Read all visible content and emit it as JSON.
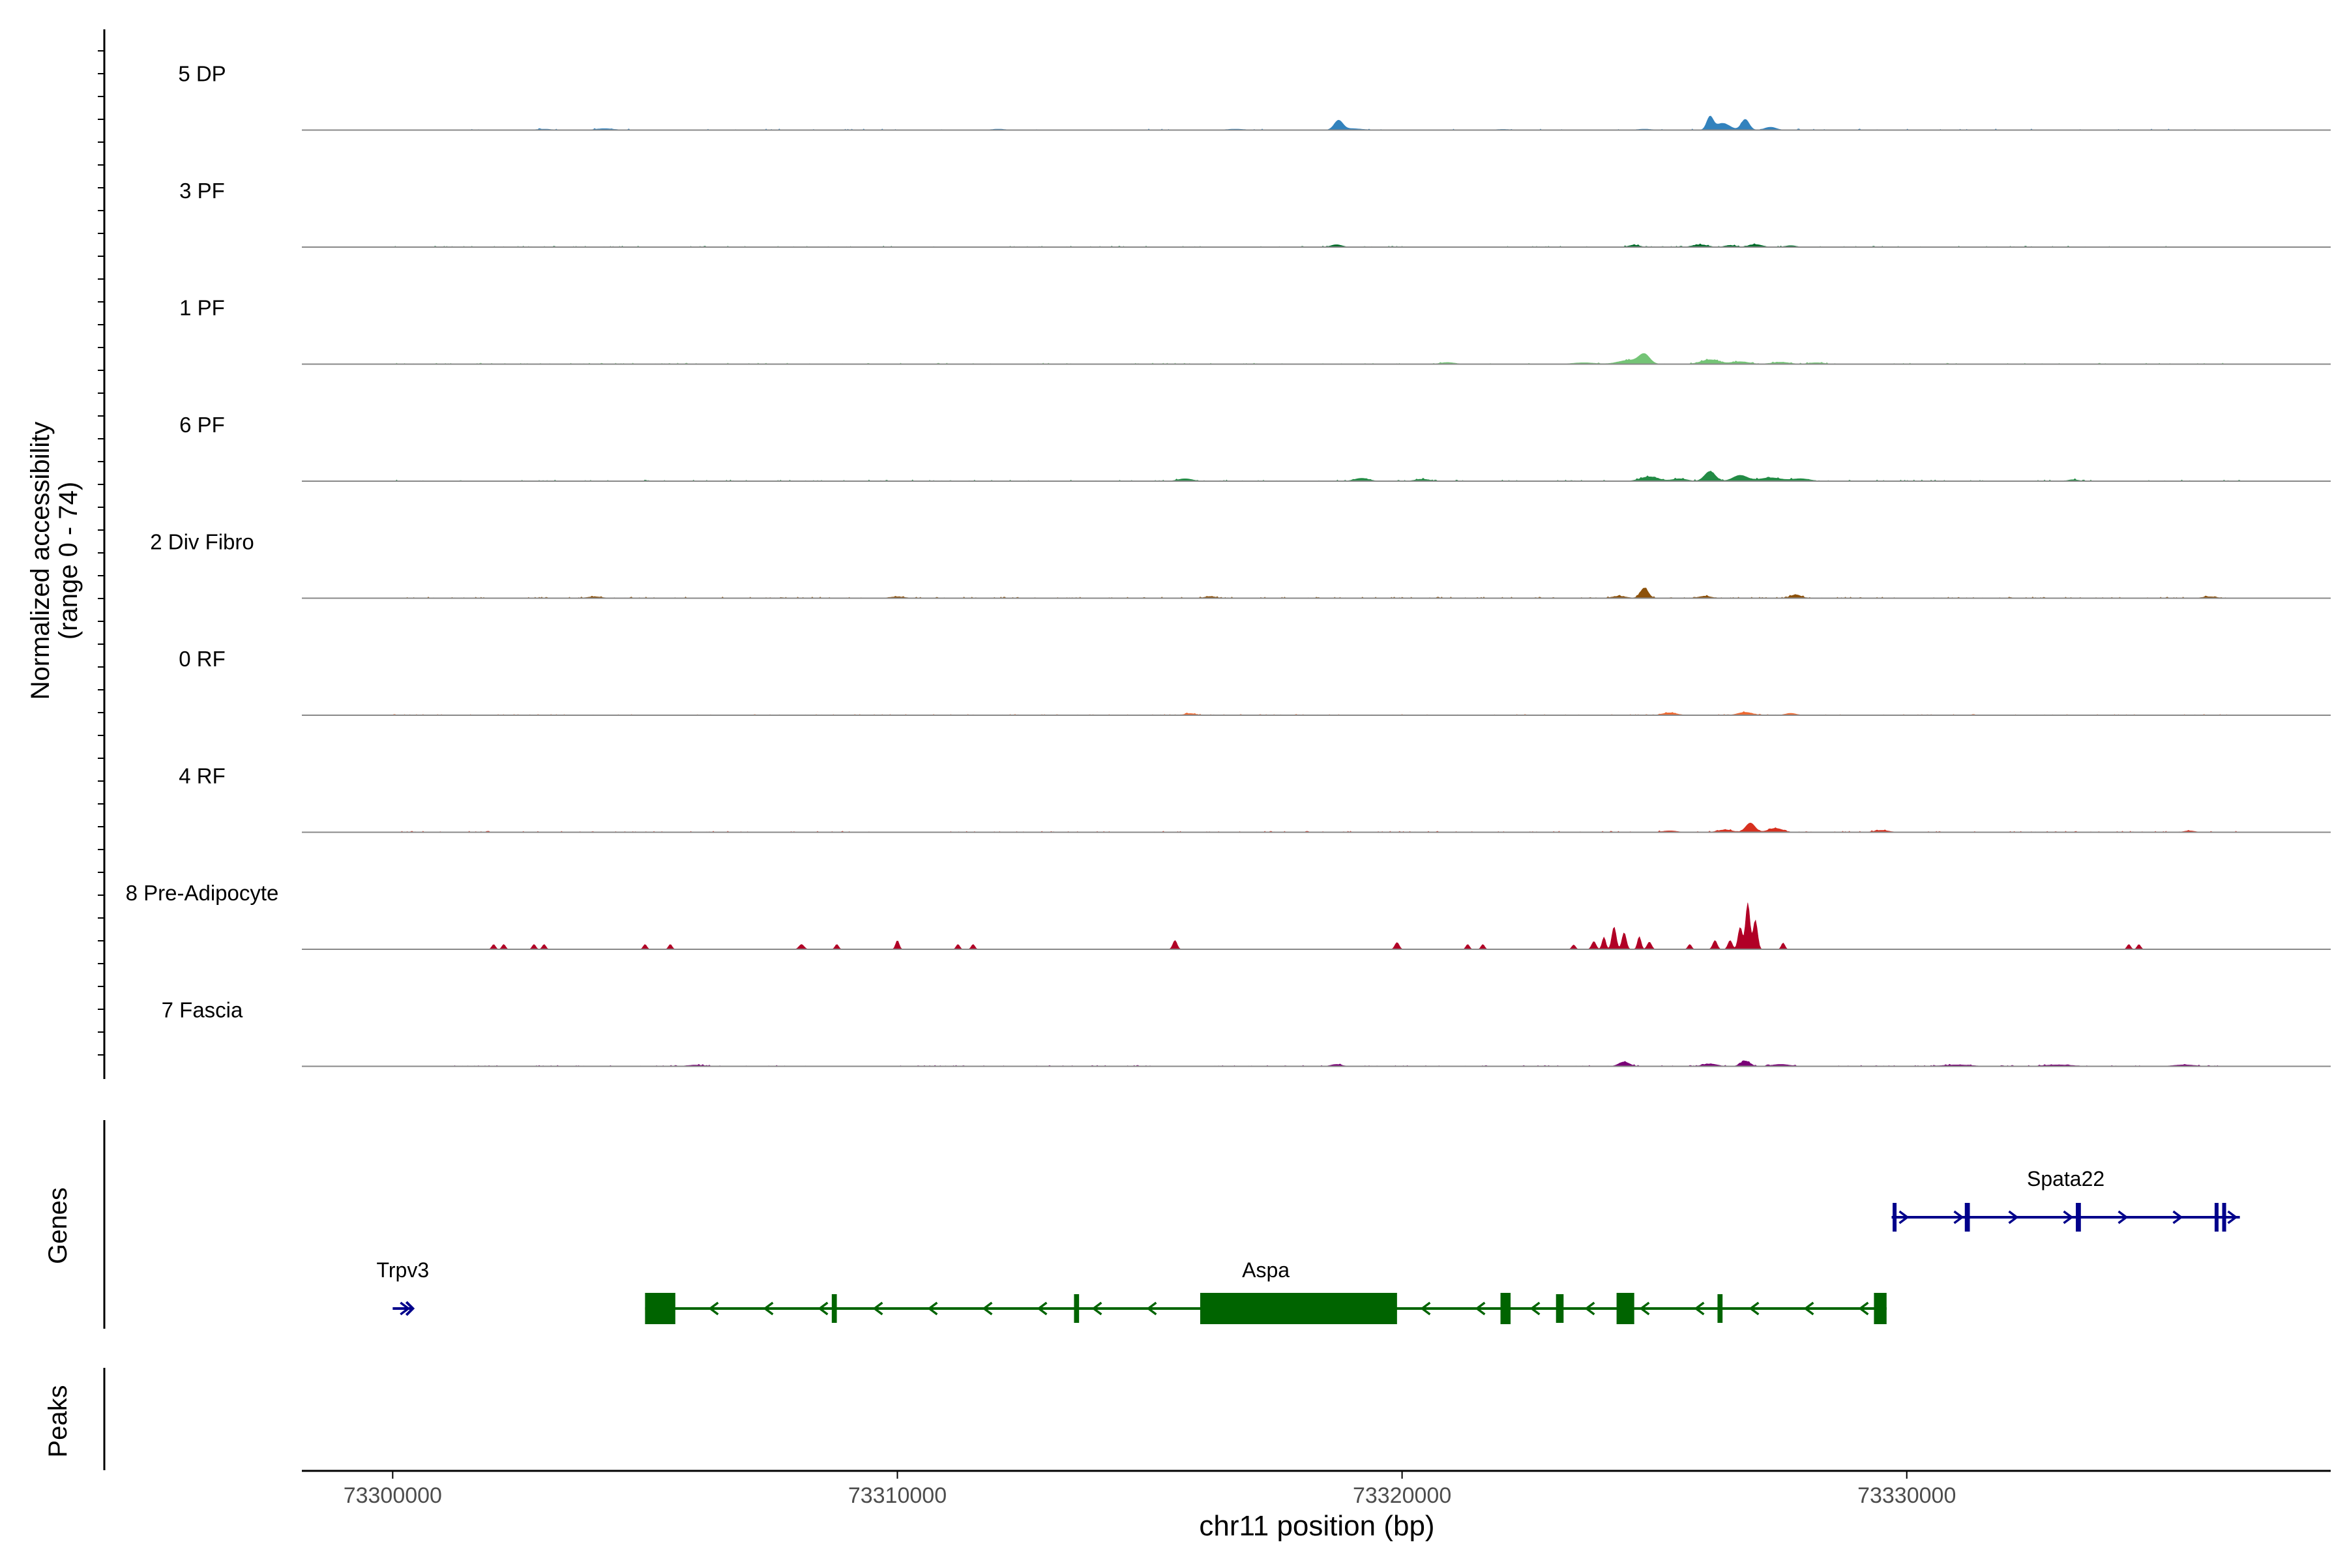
{
  "chart_data": {
    "type": "area",
    "title": "",
    "xlabel": "chr11 position (bp)",
    "ylabel_line1": "Normalized accessibility",
    "ylabel_line2": "(range 0 - 74)",
    "xlim": [
      73298200,
      73338400
    ],
    "ylim": [
      0,
      74
    ],
    "x_ticks": [
      73300000,
      73310000,
      73320000,
      73330000
    ],
    "x_tick_labels": [
      "73300000",
      "73310000",
      "73320000",
      "73330000"
    ],
    "gene_panel_label": "Genes",
    "peak_panel_label": "Peaks",
    "tracks": [
      {
        "name": "5 DP",
        "color": "#3282bd",
        "peaks": [
          [
            73318740,
            1.9,
            120
          ],
          [
            73319000,
            0.3,
            300
          ],
          [
            73324800,
            0.2,
            200
          ],
          [
            73326100,
            2.6,
            90
          ],
          [
            73326350,
            1.4,
            200
          ],
          [
            73326800,
            2.2,
            110
          ],
          [
            73327300,
            0.6,
            160
          ],
          [
            73304200,
            0.3,
            250
          ],
          [
            73303000,
            0.2,
            200
          ],
          [
            73312000,
            0.2,
            200
          ],
          [
            73316700,
            0.2,
            250
          ],
          [
            73322000,
            0.15,
            200
          ]
        ],
        "noise": {
          "density": 0.08,
          "amp": 0.25,
          "seed": 11
        }
      },
      {
        "name": "3 PF",
        "color": "#006d2c",
        "peaks": [
          [
            73318700,
            0.5,
            150
          ],
          [
            73324600,
            0.4,
            150
          ],
          [
            73325900,
            0.5,
            200
          ],
          [
            73326500,
            0.35,
            150
          ],
          [
            73327000,
            0.55,
            180
          ],
          [
            73327700,
            0.3,
            150
          ]
        ],
        "noise": {
          "density": 0.18,
          "amp": 0.2,
          "seed": 12
        }
      },
      {
        "name": "1 PF",
        "color": "#74c476",
        "peaks": [
          [
            73324800,
            1.9,
            150
          ],
          [
            73324500,
            0.8,
            300
          ],
          [
            73326100,
            0.9,
            250
          ],
          [
            73326700,
            0.5,
            250
          ],
          [
            73327500,
            0.4,
            250
          ],
          [
            73328200,
            0.3,
            200
          ],
          [
            73320900,
            0.35,
            200
          ],
          [
            73323600,
            0.3,
            300
          ]
        ],
        "noise": {
          "density": 0.15,
          "amp": 0.22,
          "seed": 13
        }
      },
      {
        "name": "6 PF",
        "color": "#238b45",
        "peaks": [
          [
            73326100,
            2.0,
            150
          ],
          [
            73326700,
            1.2,
            200
          ],
          [
            73324900,
            0.9,
            250
          ],
          [
            73325500,
            0.5,
            200
          ],
          [
            73327300,
            0.7,
            300
          ],
          [
            73327900,
            0.5,
            250
          ],
          [
            73319200,
            0.6,
            200
          ],
          [
            73315700,
            0.5,
            200
          ],
          [
            73320400,
            0.4,
            200
          ],
          [
            73333300,
            0.3,
            150
          ]
        ],
        "noise": {
          "density": 0.15,
          "amp": 0.25,
          "seed": 14
        }
      },
      {
        "name": "2 Div Fibro",
        "color": "#8c510a",
        "peaks": [
          [
            73324800,
            2.1,
            110
          ],
          [
            73324300,
            0.4,
            200
          ],
          [
            73326000,
            0.4,
            180
          ],
          [
            73327800,
            0.7,
            150
          ],
          [
            73316200,
            0.35,
            150
          ],
          [
            73304000,
            0.3,
            200
          ],
          [
            73310000,
            0.3,
            200
          ],
          [
            73336000,
            0.3,
            200
          ]
        ],
        "noise": {
          "density": 0.22,
          "amp": 0.25,
          "seed": 15
        }
      },
      {
        "name": "0 RF",
        "color": "#ee6a33",
        "peaks": [
          [
            73325300,
            0.5,
            200
          ],
          [
            73326800,
            0.6,
            200
          ],
          [
            73327700,
            0.4,
            150
          ],
          [
            73315800,
            0.35,
            150
          ]
        ],
        "noise": {
          "density": 0.2,
          "amp": 0.18,
          "seed": 16
        }
      },
      {
        "name": "4 RF",
        "color": "#d7301f",
        "peaks": [
          [
            73326900,
            1.9,
            130
          ],
          [
            73327400,
            0.8,
            200
          ],
          [
            73326400,
            0.5,
            200
          ],
          [
            73325300,
            0.3,
            200
          ],
          [
            73329500,
            0.4,
            200
          ],
          [
            73335600,
            0.3,
            150
          ]
        ],
        "noise": {
          "density": 0.2,
          "amp": 0.22,
          "seed": 17
        }
      },
      {
        "name": "8 Pre-Adipocyte",
        "color": "#b10026",
        "peaks": [
          [
            73302000,
            1.0,
            50
          ],
          [
            73302200,
            1.0,
            50
          ],
          [
            73302800,
            1.0,
            50
          ],
          [
            73303000,
            1.0,
            50
          ],
          [
            73305000,
            1.0,
            50
          ],
          [
            73305500,
            1.0,
            50
          ],
          [
            73308100,
            1.0,
            70
          ],
          [
            73308800,
            1.0,
            50
          ],
          [
            73310000,
            1.8,
            50
          ],
          [
            73311200,
            1.0,
            50
          ],
          [
            73311500,
            1.0,
            50
          ],
          [
            73315500,
            1.8,
            60
          ],
          [
            73319900,
            1.4,
            60
          ],
          [
            73321300,
            1.0,
            50
          ],
          [
            73321600,
            1.0,
            50
          ],
          [
            73323400,
            0.9,
            50
          ],
          [
            73323800,
            1.6,
            60
          ],
          [
            73324000,
            2.5,
            50
          ],
          [
            73324200,
            4.6,
            60
          ],
          [
            73324400,
            3.4,
            60
          ],
          [
            73324700,
            2.6,
            50
          ],
          [
            73324900,
            1.5,
            60
          ],
          [
            73325700,
            1.0,
            50
          ],
          [
            73326200,
            1.8,
            60
          ],
          [
            73326500,
            1.8,
            60
          ],
          [
            73326700,
            4.5,
            60
          ],
          [
            73326850,
            9.5,
            60
          ],
          [
            73327000,
            6.0,
            60
          ],
          [
            73327550,
            1.3,
            50
          ],
          [
            73334400,
            1.0,
            50
          ],
          [
            73334600,
            1.0,
            50
          ]
        ],
        "noise": {
          "density": 0.0,
          "amp": 0,
          "seed": 18
        }
      },
      {
        "name": "7 Fascia",
        "color": "#7a0177",
        "peaks": [
          [
            73324400,
            0.9,
            150
          ],
          [
            73326800,
            1.1,
            130
          ],
          [
            73326100,
            0.5,
            200
          ],
          [
            73327500,
            0.4,
            250
          ],
          [
            73331000,
            0.3,
            400
          ],
          [
            73333000,
            0.3,
            400
          ],
          [
            73335500,
            0.3,
            300
          ],
          [
            73306000,
            0.25,
            250
          ],
          [
            73318700,
            0.4,
            150
          ]
        ],
        "noise": {
          "density": 0.2,
          "amp": 0.2,
          "seed": 19
        }
      }
    ],
    "genes": [
      {
        "name": "Trpv3",
        "strand": "+",
        "color": "#00008b",
        "start": 73300000,
        "end": 73300400,
        "row": "lower",
        "exons": []
      },
      {
        "name": "Aspa",
        "strand": "-",
        "color": "#006400",
        "start": 73305000,
        "end": 73329600,
        "row": "lower",
        "exons": [
          [
            73305000,
            73305600
          ],
          [
            73308700,
            73308800
          ],
          [
            73313500,
            73313600
          ],
          [
            73316000,
            73319900
          ],
          [
            73321950,
            73322150
          ],
          [
            73323050,
            73323200
          ],
          [
            73324250,
            73324600
          ],
          [
            73326250,
            73326350
          ],
          [
            73329350,
            73329600
          ]
        ]
      },
      {
        "name": "Spata22",
        "strand": "+",
        "color": "#00008b",
        "start": 73329700,
        "end": 73336600,
        "row": "upper",
        "exons": [
          [
            73329720,
            73329760
          ],
          [
            73331150,
            73331250
          ],
          [
            73333350,
            73333450
          ],
          [
            73336100,
            73336170
          ],
          [
            73336250,
            73336320
          ]
        ]
      }
    ]
  }
}
